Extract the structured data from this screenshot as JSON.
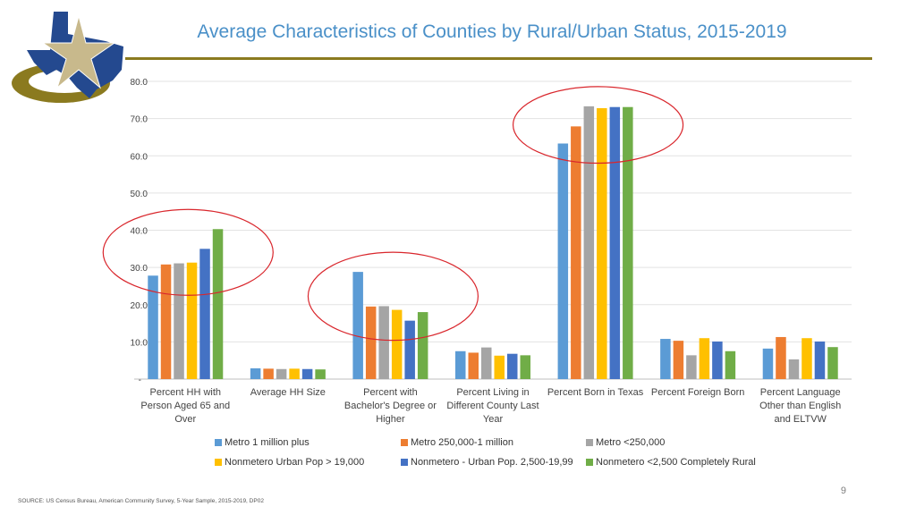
{
  "title": "Average Characteristics of Counties by Rural/Urban Status, 2015-2019",
  "page_number": "9",
  "source": "SOURCE: US Census Bureau, American Community Survey, 5-Year Sample, 2015-2019, DP02",
  "colors": {
    "title": "#4a90c8",
    "rule": "#8b7a1f",
    "highlight": "#d9262c",
    "series": [
      "#5b9bd5",
      "#ed7d31",
      "#a5a5a5",
      "#ffc000",
      "#4472c4",
      "#70ad47"
    ]
  },
  "chart_data": {
    "type": "bar",
    "categories": [
      "Percent HH with Person Aged 65 and Over",
      "Average HH Size",
      "Percent with Bachelor's Degree or Higher",
      "Percent Living in Different County Last Year",
      "Percent Born in Texas",
      "Percent Foreign Born",
      "Percent Language Other than English and ELTVW"
    ],
    "series": [
      {
        "name": "Metro 1 million plus",
        "values": [
          27.8,
          2.9,
          28.8,
          7.5,
          63.3,
          10.8,
          8.2
        ]
      },
      {
        "name": "Metro 250,000-1 million",
        "values": [
          30.8,
          2.8,
          19.5,
          7.1,
          67.9,
          10.3,
          11.3
        ]
      },
      {
        "name": "Metro <250,000",
        "values": [
          31.1,
          2.7,
          19.6,
          8.5,
          73.3,
          6.4,
          5.3
        ]
      },
      {
        "name": "Nonmetero Urban Pop > 19,000",
        "values": [
          31.3,
          2.8,
          18.6,
          6.3,
          72.8,
          11.0,
          11.0
        ]
      },
      {
        "name": "Nonmetero - Urban Pop. 2,500-19,99",
        "values": [
          35.0,
          2.7,
          15.7,
          6.8,
          73.1,
          10.1,
          10.1
        ]
      },
      {
        "name": "Nonmetero <2,500 Completely Rural",
        "values": [
          40.3,
          2.6,
          18.0,
          6.4,
          73.1,
          7.5,
          8.6
        ]
      }
    ],
    "ylim": [
      0,
      80
    ],
    "yticks": [
      "-",
      "10.0",
      "20.0",
      "30.0",
      "40.0",
      "50.0",
      "60.0",
      "70.0",
      "80.0"
    ],
    "ytick_values": [
      0,
      10,
      20,
      30,
      40,
      50,
      60,
      70,
      80
    ],
    "grid": true,
    "legend_position": "bottom",
    "highlighted_categories": [
      0,
      2,
      4
    ]
  }
}
